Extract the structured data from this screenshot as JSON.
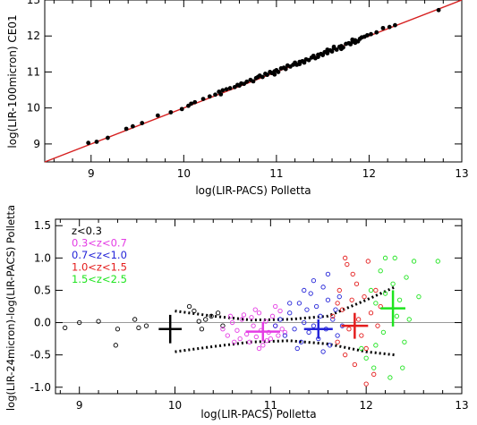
{
  "chart_data": [
    {
      "type": "scatter",
      "xlabel": "log(LIR-PACS) Polletta",
      "ylabel": "log(LIR-100micron) CE01",
      "xlim": [
        8.5,
        13
      ],
      "ylim": [
        8.5,
        13
      ],
      "xticks": [
        9,
        10,
        11,
        12,
        13
      ],
      "yticks": [
        9,
        10,
        11,
        12,
        13
      ],
      "grid": false,
      "reference_line": {
        "name": "",
        "color": "#d62020",
        "x": [
          8.5,
          13
        ],
        "y": [
          8.5,
          13
        ]
      },
      "series": [
        {
          "color": "#000000",
          "marker": "filled-circle",
          "points": [
            [
              8.97,
              9.03
            ],
            [
              9.06,
              9.06
            ],
            [
              9.18,
              9.17
            ],
            [
              9.38,
              9.42
            ],
            [
              9.45,
              9.49
            ],
            [
              9.55,
              9.58
            ],
            [
              9.72,
              9.79
            ],
            [
              9.86,
              9.88
            ],
            [
              9.98,
              9.97
            ],
            [
              10.08,
              10.12
            ],
            [
              10.12,
              10.16
            ],
            [
              10.21,
              10.25
            ],
            [
              10.28,
              10.32
            ],
            [
              10.34,
              10.37
            ],
            [
              10.38,
              10.45
            ],
            [
              10.42,
              10.49
            ],
            [
              10.46,
              10.52
            ],
            [
              10.5,
              10.55
            ],
            [
              10.55,
              10.58
            ],
            [
              10.58,
              10.64
            ],
            [
              10.62,
              10.68
            ],
            [
              10.65,
              10.67
            ],
            [
              10.68,
              10.73
            ],
            [
              10.72,
              10.78
            ],
            [
              10.75,
              10.74
            ],
            [
              10.78,
              10.83
            ],
            [
              10.8,
              10.86
            ],
            [
              10.82,
              10.9
            ],
            [
              10.85,
              10.86
            ],
            [
              10.88,
              10.95
            ],
            [
              10.9,
              10.92
            ],
            [
              10.93,
              11.0
            ],
            [
              10.95,
              10.97
            ],
            [
              10.98,
              11.02
            ],
            [
              11.0,
              11.05
            ],
            [
              11.02,
              11.0
            ],
            [
              11.05,
              11.1
            ],
            [
              11.08,
              11.12
            ],
            [
              11.1,
              11.08
            ],
            [
              11.12,
              11.18
            ],
            [
              11.15,
              11.15
            ],
            [
              11.18,
              11.2
            ],
            [
              11.2,
              11.26
            ],
            [
              11.22,
              11.2
            ],
            [
              11.25,
              11.28
            ],
            [
              11.28,
              11.3
            ],
            [
              11.3,
              11.26
            ],
            [
              11.32,
              11.35
            ],
            [
              11.35,
              11.33
            ],
            [
              11.38,
              11.4
            ],
            [
              11.4,
              11.45
            ],
            [
              11.42,
              11.38
            ],
            [
              11.45,
              11.48
            ],
            [
              11.48,
              11.5
            ],
            [
              11.5,
              11.47
            ],
            [
              11.52,
              11.55
            ],
            [
              11.55,
              11.52
            ],
            [
              11.58,
              11.6
            ],
            [
              11.6,
              11.57
            ],
            [
              11.62,
              11.66
            ],
            [
              11.65,
              11.62
            ],
            [
              11.68,
              11.7
            ],
            [
              11.7,
              11.72
            ],
            [
              11.72,
              11.68
            ],
            [
              11.75,
              11.78
            ],
            [
              11.78,
              11.8
            ],
            [
              11.8,
              11.77
            ],
            [
              11.82,
              11.84
            ],
            [
              11.85,
              11.88
            ],
            [
              11.88,
              11.85
            ],
            [
              11.9,
              11.92
            ],
            [
              11.92,
              11.96
            ],
            [
              11.95,
              11.98
            ],
            [
              11.98,
              12.02
            ],
            [
              12.02,
              12.05
            ],
            [
              12.08,
              12.1
            ],
            [
              12.15,
              12.22
            ],
            [
              12.22,
              12.25
            ],
            [
              12.28,
              12.3
            ],
            [
              12.75,
              12.72
            ],
            [
              10.05,
              10.06
            ],
            [
              10.4,
              10.38
            ],
            [
              10.6,
              10.62
            ],
            [
              10.98,
              10.93
            ],
            [
              11.25,
              11.22
            ],
            [
              11.45,
              11.42
            ],
            [
              11.55,
              11.62
            ],
            [
              11.7,
              11.64
            ],
            [
              11.85,
              11.81
            ],
            [
              11.62,
              11.7
            ],
            [
              11.82,
              11.9
            ]
          ]
        }
      ]
    },
    {
      "type": "scatter",
      "xlabel": "log(LIR-PACS) Polletta",
      "ylabel": "log(LIR-24micron)-log(LIR-PACS) Polletta",
      "xlim": [
        8.75,
        13
      ],
      "ylim": [
        -1.1,
        1.6
      ],
      "xticks": [
        9,
        10,
        11,
        12,
        13
      ],
      "yticks": [
        -1.0,
        -0.5,
        0.0,
        0.5,
        1.0,
        1.5
      ],
      "grid": false,
      "legend_position": "top-left",
      "zero_line": {
        "y": 0,
        "color": "#999999"
      },
      "envelope": {
        "color": "#000000",
        "upper": [
          [
            10.0,
            0.18
          ],
          [
            10.4,
            0.1
          ],
          [
            10.8,
            0.04
          ],
          [
            11.2,
            0.05
          ],
          [
            11.6,
            0.1
          ],
          [
            12.0,
            0.35
          ],
          [
            12.3,
            0.55
          ]
        ],
        "lower": [
          [
            10.0,
            -0.45
          ],
          [
            10.4,
            -0.37
          ],
          [
            10.8,
            -0.3
          ],
          [
            11.2,
            -0.28
          ],
          [
            11.6,
            -0.33
          ],
          [
            12.0,
            -0.45
          ],
          [
            12.3,
            -0.5
          ]
        ]
      },
      "series": [
        {
          "name": "z<0.3",
          "color": "#000000",
          "points": [
            [
              8.85,
              -0.08
            ],
            [
              9.0,
              0.0
            ],
            [
              9.2,
              0.02
            ],
            [
              9.38,
              -0.35
            ],
            [
              9.4,
              -0.1
            ],
            [
              9.58,
              0.05
            ],
            [
              9.62,
              -0.08
            ],
            [
              9.7,
              -0.05
            ],
            [
              10.15,
              0.25
            ],
            [
              10.2,
              0.18
            ],
            [
              10.25,
              0.02
            ],
            [
              10.28,
              -0.1
            ],
            [
              10.32,
              0.05
            ],
            [
              10.38,
              0.1
            ],
            [
              10.45,
              0.15
            ],
            [
              10.5,
              -0.05
            ]
          ],
          "mean": {
            "x": 9.95,
            "y": -0.1,
            "xerr": 0.12,
            "yerr": 0.22
          }
        },
        {
          "name": "0.3<z<0.7",
          "color": "#e43ce4",
          "points": [
            [
              10.5,
              -0.1
            ],
            [
              10.55,
              -0.2
            ],
            [
              10.6,
              0.0
            ],
            [
              10.65,
              -0.12
            ],
            [
              10.68,
              -0.25
            ],
            [
              10.7,
              0.05
            ],
            [
              10.75,
              -0.18
            ],
            [
              10.78,
              -0.3
            ],
            [
              10.8,
              0.08
            ],
            [
              10.82,
              -0.05
            ],
            [
              10.85,
              -0.22
            ],
            [
              10.88,
              0.15
            ],
            [
              10.9,
              -0.12
            ],
            [
              10.92,
              -0.35
            ],
            [
              10.95,
              0.02
            ],
            [
              10.98,
              -0.15
            ],
            [
              11.0,
              -0.25
            ],
            [
              11.02,
              0.1
            ],
            [
              11.05,
              -0.05
            ],
            [
              11.08,
              -0.2
            ],
            [
              11.1,
              0.18
            ],
            [
              11.12,
              -0.1
            ],
            [
              10.72,
              0.12
            ],
            [
              10.62,
              -0.3
            ],
            [
              10.84,
              0.2
            ],
            [
              10.96,
              -0.28
            ],
            [
              11.15,
              -0.15
            ],
            [
              10.58,
              0.1
            ],
            [
              10.88,
              -0.4
            ],
            [
              11.05,
              0.25
            ]
          ],
          "mean": {
            "x": 10.92,
            "y": -0.14,
            "xerr": 0.18,
            "yerr": 0.15
          }
        },
        {
          "name": "0.7<z<1.0",
          "color": "#2424d8",
          "points": [
            [
              11.05,
              -0.05
            ],
            [
              11.1,
              0.05
            ],
            [
              11.15,
              -0.2
            ],
            [
              11.2,
              0.15
            ],
            [
              11.25,
              -0.1
            ],
            [
              11.3,
              0.3
            ],
            [
              11.32,
              -0.3
            ],
            [
              11.35,
              0.0
            ],
            [
              11.38,
              0.2
            ],
            [
              11.4,
              -0.15
            ],
            [
              11.42,
              0.45
            ],
            [
              11.45,
              -0.05
            ],
            [
              11.48,
              0.25
            ],
            [
              11.5,
              -0.25
            ],
            [
              11.52,
              0.1
            ],
            [
              11.55,
              0.55
            ],
            [
              11.58,
              -0.1
            ],
            [
              11.6,
              0.35
            ],
            [
              11.62,
              -0.35
            ],
            [
              11.65,
              0.05
            ],
            [
              11.68,
              0.2
            ],
            [
              11.7,
              -0.2
            ],
            [
              11.72,
              0.4
            ],
            [
              11.75,
              -0.05
            ],
            [
              11.35,
              0.5
            ],
            [
              11.45,
              0.65
            ],
            [
              11.28,
              -0.4
            ],
            [
              11.55,
              -0.45
            ],
            [
              11.6,
              0.75
            ],
            [
              11.2,
              0.3
            ]
          ],
          "mean": {
            "x": 11.5,
            "y": -0.1,
            "xerr": 0.15,
            "yerr": 0.15
          }
        },
        {
          "name": "1.0<z<1.5",
          "color": "#e41c1c",
          "points": [
            [
              11.65,
              0.1
            ],
            [
              11.7,
              -0.3
            ],
            [
              11.72,
              0.5
            ],
            [
              11.75,
              0.2
            ],
            [
              11.78,
              -0.5
            ],
            [
              11.8,
              0.9
            ],
            [
              11.82,
              -0.1
            ],
            [
              11.85,
              0.35
            ],
            [
              11.88,
              -0.65
            ],
            [
              11.9,
              0.6
            ],
            [
              11.92,
              0.05
            ],
            [
              11.95,
              -0.2
            ],
            [
              11.98,
              0.4
            ],
            [
              12.0,
              -0.4
            ],
            [
              12.02,
              0.95
            ],
            [
              12.05,
              0.15
            ],
            [
              12.08,
              -0.8
            ],
            [
              12.1,
              0.5
            ],
            [
              12.12,
              -0.05
            ],
            [
              12.15,
              0.25
            ],
            [
              11.78,
              1.0
            ],
            [
              11.86,
              0.75
            ],
            [
              12.0,
              -0.95
            ],
            [
              11.7,
              0.3
            ]
          ],
          "mean": {
            "x": 11.88,
            "y": -0.05,
            "xerr": 0.14,
            "yerr": 0.2
          }
        },
        {
          "name": "1.5<z<2.5",
          "color": "#1ee41e",
          "points": [
            [
              11.95,
              -0.4
            ],
            [
              12.0,
              -0.55
            ],
            [
              12.05,
              0.5
            ],
            [
              12.08,
              -0.7
            ],
            [
              12.1,
              0.3
            ],
            [
              12.15,
              0.8
            ],
            [
              12.18,
              -0.15
            ],
            [
              12.2,
              0.45
            ],
            [
              12.25,
              -0.85
            ],
            [
              12.28,
              0.6
            ],
            [
              12.3,
              1.0
            ],
            [
              12.32,
              0.1
            ],
            [
              12.35,
              0.35
            ],
            [
              12.4,
              -0.3
            ],
            [
              12.42,
              0.7
            ],
            [
              12.45,
              0.05
            ],
            [
              12.5,
              0.95
            ],
            [
              12.55,
              0.4
            ],
            [
              12.75,
              0.95
            ],
            [
              12.2,
              1.0
            ],
            [
              12.38,
              -0.7
            ],
            [
              12.1,
              -0.35
            ]
          ],
          "mean": {
            "x": 12.28,
            "y": 0.22,
            "xerr": 0.13,
            "yerr": 0.28
          }
        }
      ]
    }
  ]
}
